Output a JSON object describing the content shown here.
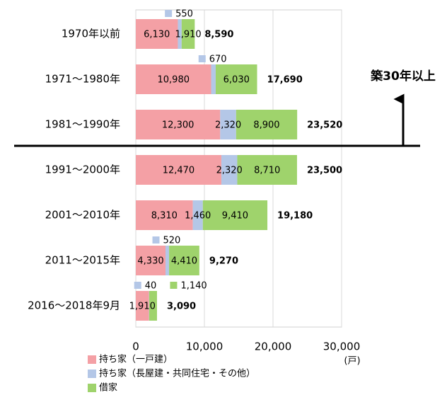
{
  "chart_data": {
    "type": "bar",
    "orientation": "horizontal",
    "stacked": true,
    "categories": [
      "1970年以前",
      "1971～1980年",
      "1981～1990年",
      "1991～2000年",
      "2001～2010年",
      "2011～2015年",
      "2016～2018年9月"
    ],
    "series": [
      {
        "name": "持ち家（一戸建）",
        "color": "#f4a0a5",
        "values": [
          6130,
          10980,
          12300,
          12470,
          8310,
          4330,
          1910
        ],
        "value_labels": [
          "6,130",
          "10,980",
          "12,300",
          "12,470",
          "8,310",
          "4,330",
          "1,910"
        ]
      },
      {
        "name": "持ち家（長屋建・共同住宅・その他）",
        "color": "#b4c7e7",
        "values": [
          550,
          670,
          2320,
          2320,
          1460,
          520,
          40
        ],
        "value_labels": [
          "550",
          "670",
          "2,320",
          "2,320",
          "1,460",
          "520",
          "40"
        ]
      },
      {
        "name": "借家",
        "color": "#9fd36c",
        "values": [
          1910,
          6030,
          8900,
          8710,
          9410,
          4410,
          1140
        ],
        "value_labels": [
          "1,910",
          "6,030",
          "8,900",
          "8,710",
          "9,410",
          "4,410",
          "1,140"
        ]
      }
    ],
    "totals": [
      8590,
      17690,
      23520,
      23500,
      19180,
      9270,
      3090
    ],
    "total_labels": [
      "8,590",
      "17,690",
      "23,520",
      "23,500",
      "19,180",
      "9,270",
      "3,090"
    ],
    "xlim": [
      0,
      30000
    ],
    "xticks": [
      0,
      {
        "value": 10000,
        "label": "10,000"
      },
      {
        "value": 20000,
        "label": "20,000"
      },
      {
        "value": 30000,
        "label": "30,000"
      }
    ],
    "x_unit": "(戸)",
    "annotation": "築30年以上",
    "grid": true
  }
}
